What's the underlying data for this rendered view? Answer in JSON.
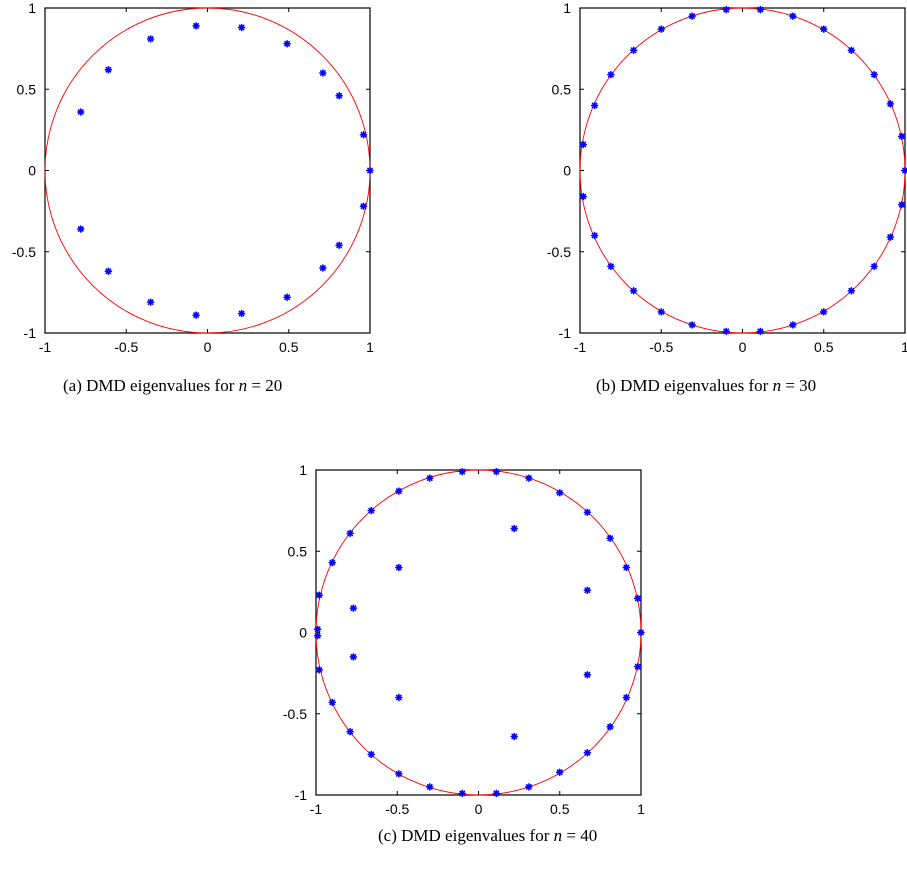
{
  "colors": {
    "unit_circle": "#ff0000",
    "eigenvalues": "#0000ff",
    "axes": "#000000"
  },
  "chart_data": [
    {
      "id": "a",
      "type": "scatter",
      "caption": {
        "label": "(a)",
        "text": "DMD eigenvalues for",
        "var": "n",
        "eq": "=",
        "value": "20"
      },
      "xlim": [
        -1,
        1
      ],
      "ylim": [
        -1,
        1
      ],
      "xticks": [
        "-1",
        "-0.5",
        "0",
        "0.5",
        "1"
      ],
      "yticks": [
        "1",
        "0.5",
        "0",
        "-0.5",
        "-1"
      ],
      "grid": false,
      "reference": "unit circle",
      "series": [
        {
          "marker": "*",
          "points": [
            [
              1.0,
              0.0
            ],
            [
              0.96,
              0.22
            ],
            [
              0.96,
              -0.22
            ],
            [
              0.81,
              0.46
            ],
            [
              0.81,
              -0.46
            ],
            [
              0.71,
              0.6
            ],
            [
              0.71,
              -0.6
            ],
            [
              0.49,
              0.78
            ],
            [
              0.49,
              -0.78
            ],
            [
              0.21,
              0.88
            ],
            [
              0.21,
              -0.88
            ],
            [
              -0.07,
              0.89
            ],
            [
              -0.07,
              -0.89
            ],
            [
              -0.35,
              0.81
            ],
            [
              -0.35,
              -0.81
            ],
            [
              -0.61,
              0.62
            ],
            [
              -0.61,
              -0.62
            ],
            [
              -0.78,
              0.36
            ],
            [
              -0.78,
              -0.36
            ]
          ]
        }
      ]
    },
    {
      "id": "b",
      "type": "scatter",
      "caption": {
        "label": "(b)",
        "text": "DMD eigenvalues for",
        "var": "n",
        "eq": "=",
        "value": "30"
      },
      "xlim": [
        -1,
        1
      ],
      "ylim": [
        -1,
        1
      ],
      "xticks": [
        "-1",
        "-0.5",
        "0",
        "0.5",
        "1"
      ],
      "yticks": [
        "1",
        "0.5",
        "0",
        "-0.5",
        "-1"
      ],
      "grid": false,
      "reference": "unit circle",
      "series": [
        {
          "marker": "*",
          "points": [
            [
              1.0,
              0.0
            ],
            [
              0.98,
              0.21
            ],
            [
              0.98,
              -0.21
            ],
            [
              0.91,
              0.41
            ],
            [
              0.91,
              -0.41
            ],
            [
              0.81,
              0.59
            ],
            [
              0.81,
              -0.59
            ],
            [
              0.67,
              0.74
            ],
            [
              0.67,
              -0.74
            ],
            [
              0.5,
              0.87
            ],
            [
              0.5,
              -0.87
            ],
            [
              0.31,
              0.95
            ],
            [
              0.31,
              -0.95
            ],
            [
              0.11,
              0.99
            ],
            [
              0.11,
              -0.99
            ],
            [
              -0.1,
              0.99
            ],
            [
              -0.1,
              -0.99
            ],
            [
              -0.31,
              0.95
            ],
            [
              -0.31,
              -0.95
            ],
            [
              -0.5,
              0.87
            ],
            [
              -0.5,
              -0.87
            ],
            [
              -0.67,
              0.74
            ],
            [
              -0.67,
              -0.74
            ],
            [
              -0.81,
              0.59
            ],
            [
              -0.81,
              -0.59
            ],
            [
              -0.91,
              0.4
            ],
            [
              -0.91,
              -0.4
            ],
            [
              -0.98,
              0.16
            ],
            [
              -0.98,
              -0.16
            ]
          ]
        }
      ]
    },
    {
      "id": "c",
      "type": "scatter",
      "caption": {
        "label": "(c)",
        "text": "DMD eigenvalues for",
        "var": "n",
        "eq": "=",
        "value": "40"
      },
      "xlim": [
        -1,
        1
      ],
      "ylim": [
        -1,
        1
      ],
      "xticks": [
        "-1",
        "-0.5",
        "0",
        "0.5",
        "1"
      ],
      "yticks": [
        "1",
        "0.5",
        "0",
        "-0.5",
        "-1"
      ],
      "grid": false,
      "reference": "unit circle",
      "series": [
        {
          "marker": "*",
          "points": [
            [
              1.0,
              0.0
            ],
            [
              0.98,
              0.21
            ],
            [
              0.98,
              -0.21
            ],
            [
              0.91,
              0.4
            ],
            [
              0.91,
              -0.4
            ],
            [
              0.81,
              0.58
            ],
            [
              0.81,
              -0.58
            ],
            [
              0.67,
              0.74
            ],
            [
              0.67,
              -0.74
            ],
            [
              0.5,
              0.86
            ],
            [
              0.5,
              -0.86
            ],
            [
              0.31,
              0.95
            ],
            [
              0.31,
              -0.95
            ],
            [
              0.11,
              0.99
            ],
            [
              0.11,
              -0.99
            ],
            [
              -0.1,
              0.99
            ],
            [
              -0.1,
              -0.99
            ],
            [
              -0.3,
              0.95
            ],
            [
              -0.3,
              -0.95
            ],
            [
              -0.49,
              0.87
            ],
            [
              -0.49,
              -0.87
            ],
            [
              -0.66,
              0.75
            ],
            [
              -0.66,
              -0.75
            ],
            [
              -0.79,
              0.61
            ],
            [
              -0.79,
              -0.61
            ],
            [
              -0.9,
              0.43
            ],
            [
              -0.9,
              -0.43
            ],
            [
              -0.98,
              0.23
            ],
            [
              -0.98,
              -0.23
            ],
            [
              -0.99,
              0.02
            ],
            [
              -0.99,
              -0.02
            ],
            [
              0.22,
              0.64
            ],
            [
              0.22,
              -0.64
            ],
            [
              -0.49,
              0.4
            ],
            [
              -0.49,
              -0.4
            ],
            [
              0.67,
              0.26
            ],
            [
              0.67,
              -0.26
            ],
            [
              -0.77,
              0.15
            ],
            [
              -0.77,
              -0.15
            ]
          ]
        }
      ]
    }
  ]
}
